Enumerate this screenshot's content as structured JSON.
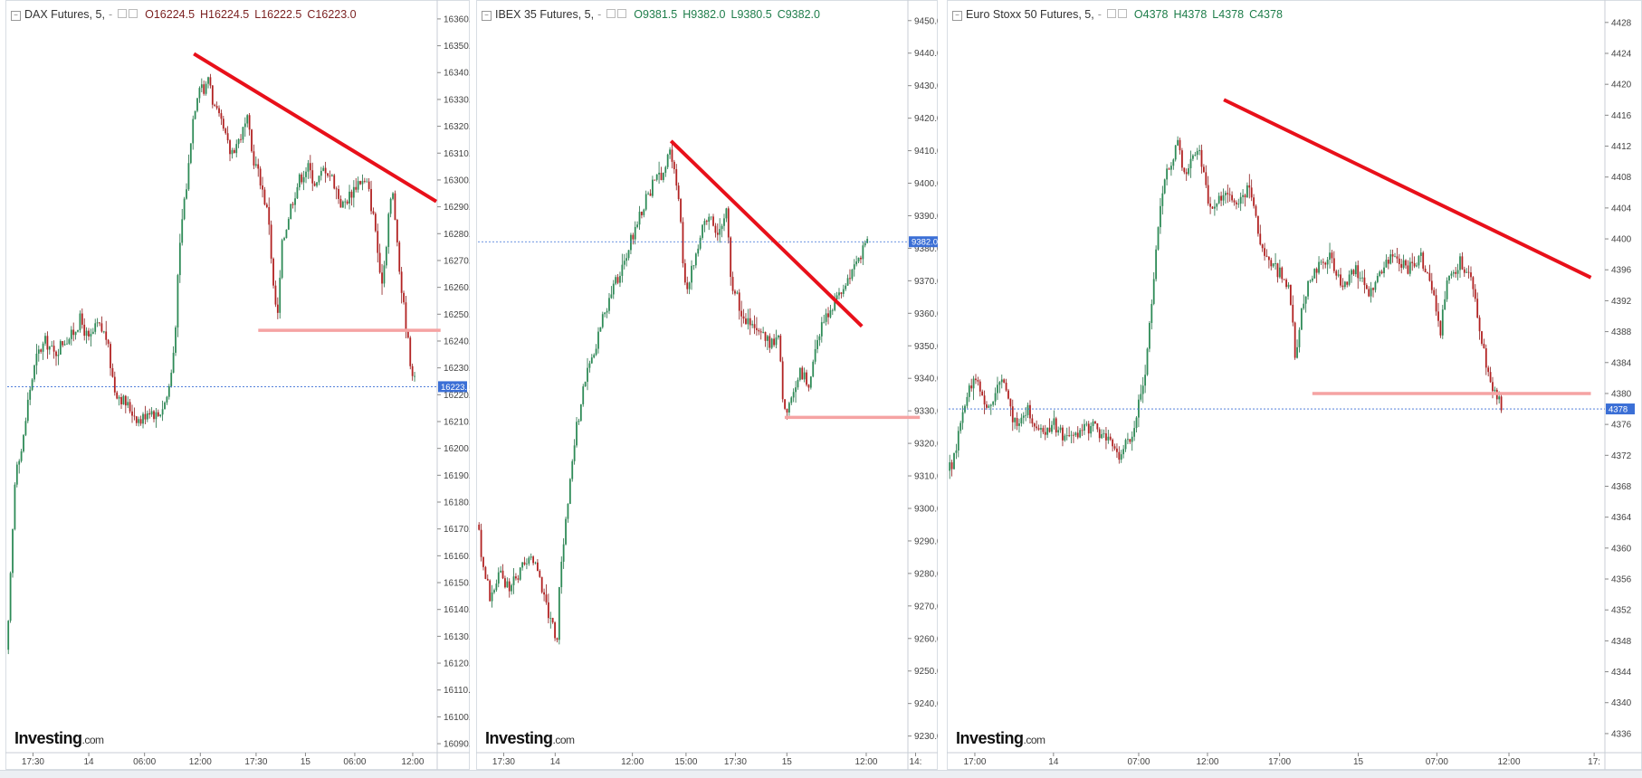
{
  "panels": [
    {
      "header": {
        "title": "DAX Futures, 5,",
        "dash": "-",
        "open": "O16224.5",
        "high": "H16224.5",
        "low": "L16222.5",
        "close": "C16223.0"
      },
      "logo": {
        "brand": "Investing",
        "suffix": ".com"
      },
      "chart_data": {
        "type": "candlestick",
        "title": "DAX Futures, 5,",
        "yticks": [
          16090.0,
          16100.0,
          16110.0,
          16120.0,
          16130.0,
          16140.0,
          16150.0,
          16160.0,
          16170.0,
          16180.0,
          16190.0,
          16200.0,
          16210.0,
          16220.0,
          16230.0,
          16240.0,
          16250.0,
          16260.0,
          16270.0,
          16280.0,
          16290.0,
          16300.0,
          16310.0,
          16320.0,
          16330.0,
          16340.0,
          16350.0,
          16360.0
        ],
        "ylim": [
          16088,
          16363
        ],
        "xticks": [
          {
            "label": "17:30",
            "pos": 0.06
          },
          {
            "label": "14",
            "pos": 0.19
          },
          {
            "label": "06:00",
            "pos": 0.32
          },
          {
            "label": "12:00",
            "pos": 0.45
          },
          {
            "label": "17:30",
            "pos": 0.58
          },
          {
            "label": "15",
            "pos": 0.695
          },
          {
            "label": "06:00",
            "pos": 0.81
          },
          {
            "label": "12:00",
            "pos": 0.945
          }
        ],
        "last_price": 16223.0,
        "last_price_label": "16223.0",
        "path": [
          [
            0.0,
            16125
          ],
          [
            0.01,
            16160
          ],
          [
            0.02,
            16195
          ],
          [
            0.035,
            16200
          ],
          [
            0.05,
            16220
          ],
          [
            0.07,
            16235
          ],
          [
            0.09,
            16240
          ],
          [
            0.11,
            16235
          ],
          [
            0.13,
            16240
          ],
          [
            0.15,
            16242
          ],
          [
            0.17,
            16248
          ],
          [
            0.19,
            16240
          ],
          [
            0.21,
            16246
          ],
          [
            0.23,
            16242
          ],
          [
            0.25,
            16222
          ],
          [
            0.27,
            16218
          ],
          [
            0.29,
            16214
          ],
          [
            0.31,
            16210
          ],
          [
            0.33,
            16215
          ],
          [
            0.35,
            16212
          ],
          [
            0.37,
            16218
          ],
          [
            0.38,
            16225
          ],
          [
            0.39,
            16240
          ],
          [
            0.4,
            16270
          ],
          [
            0.41,
            16290
          ],
          [
            0.42,
            16300
          ],
          [
            0.43,
            16320
          ],
          [
            0.44,
            16330
          ],
          [
            0.45,
            16338
          ],
          [
            0.46,
            16332
          ],
          [
            0.47,
            16340
          ],
          [
            0.48,
            16328
          ],
          [
            0.5,
            16320
          ],
          [
            0.52,
            16310
          ],
          [
            0.54,
            16315
          ],
          [
            0.56,
            16322
          ],
          [
            0.57,
            16310
          ],
          [
            0.59,
            16300
          ],
          [
            0.61,
            16285
          ],
          [
            0.62,
            16260
          ],
          [
            0.63,
            16248
          ],
          [
            0.64,
            16275
          ],
          [
            0.66,
            16290
          ],
          [
            0.68,
            16300
          ],
          [
            0.7,
            16305
          ],
          [
            0.72,
            16298
          ],
          [
            0.74,
            16305
          ],
          [
            0.76,
            16300
          ],
          [
            0.78,
            16290
          ],
          [
            0.8,
            16295
          ],
          [
            0.82,
            16300
          ],
          [
            0.84,
            16298
          ],
          [
            0.86,
            16280
          ],
          [
            0.87,
            16260
          ],
          [
            0.88,
            16270
          ],
          [
            0.89,
            16290
          ],
          [
            0.9,
            16295
          ],
          [
            0.91,
            16272
          ],
          [
            0.92,
            16258
          ],
          [
            0.93,
            16245
          ],
          [
            0.94,
            16232
          ],
          [
            0.952,
            16223
          ]
        ],
        "annotations": [
          {
            "type": "trendline",
            "from": [
              0.435,
              16347
            ],
            "to": [
              1.0,
              16292
            ],
            "color": "#e8101a"
          },
          {
            "type": "support",
            "from": [
              0.585,
              16244
            ],
            "to": [
              1.01,
              16244
            ],
            "color": "#f5a3a3"
          }
        ]
      }
    },
    {
      "header": {
        "title": "IBEX 35 Futures, 5,",
        "dash": "-",
        "open": "O9381.5",
        "high": "H9382.0",
        "low": "L9380.5",
        "close": "C9382.0"
      },
      "logo": {
        "brand": "Investing",
        "suffix": ".com"
      },
      "chart_data": {
        "type": "candlestick",
        "title": "IBEX 35 Futures, 5,",
        "yticks": [
          9230.0,
          9240.0,
          9250.0,
          9260.0,
          9270.0,
          9280.0,
          9290.0,
          9300.0,
          9310.0,
          9320.0,
          9330.0,
          9340.0,
          9350.0,
          9360.0,
          9370.0,
          9380.0,
          9390.0,
          9400.0,
          9410.0,
          9420.0,
          9430.0,
          9440.0,
          9450.0
        ],
        "ylim": [
          9226,
          9453
        ],
        "xticks": [
          {
            "label": "17:30",
            "pos": 0.06
          },
          {
            "label": "14",
            "pos": 0.18
          },
          {
            "label": "12:00",
            "pos": 0.36
          },
          {
            "label": "15:00",
            "pos": 0.485
          },
          {
            "label": "17:30",
            "pos": 0.6
          },
          {
            "label": "15",
            "pos": 0.72
          },
          {
            "label": "12:00",
            "pos": 0.905
          },
          {
            "label": "14:",
            "pos": 1.02
          }
        ],
        "last_price": 9382.0,
        "last_price_label": "9382.0",
        "path": [
          [
            0.0,
            9295
          ],
          [
            0.01,
            9282
          ],
          [
            0.02,
            9278
          ],
          [
            0.03,
            9272
          ],
          [
            0.05,
            9280
          ],
          [
            0.07,
            9276
          ],
          [
            0.09,
            9278
          ],
          [
            0.11,
            9283
          ],
          [
            0.13,
            9285
          ],
          [
            0.145,
            9278
          ],
          [
            0.16,
            9270
          ],
          [
            0.175,
            9263
          ],
          [
            0.185,
            9260
          ],
          [
            0.19,
            9275
          ],
          [
            0.2,
            9290
          ],
          [
            0.215,
            9310
          ],
          [
            0.23,
            9325
          ],
          [
            0.25,
            9340
          ],
          [
            0.27,
            9348
          ],
          [
            0.29,
            9358
          ],
          [
            0.31,
            9366
          ],
          [
            0.33,
            9372
          ],
          [
            0.35,
            9380
          ],
          [
            0.37,
            9388
          ],
          [
            0.39,
            9395
          ],
          [
            0.41,
            9400
          ],
          [
            0.43,
            9403
          ],
          [
            0.445,
            9410
          ],
          [
            0.46,
            9403
          ],
          [
            0.47,
            9392
          ],
          [
            0.48,
            9372
          ],
          [
            0.49,
            9368
          ],
          [
            0.5,
            9375
          ],
          [
            0.52,
            9385
          ],
          [
            0.54,
            9390
          ],
          [
            0.56,
            9385
          ],
          [
            0.58,
            9393
          ],
          [
            0.59,
            9370
          ],
          [
            0.61,
            9362
          ],
          [
            0.63,
            9357
          ],
          [
            0.65,
            9355
          ],
          [
            0.67,
            9352
          ],
          [
            0.68,
            9350
          ],
          [
            0.7,
            9353
          ],
          [
            0.71,
            9335
          ],
          [
            0.72,
            9328
          ],
          [
            0.73,
            9333
          ],
          [
            0.75,
            9342
          ],
          [
            0.77,
            9338
          ],
          [
            0.79,
            9350
          ],
          [
            0.81,
            9360
          ],
          [
            0.83,
            9362
          ],
          [
            0.85,
            9368
          ],
          [
            0.87,
            9372
          ],
          [
            0.88,
            9375
          ],
          [
            0.89,
            9377
          ],
          [
            0.9,
            9380
          ],
          [
            0.91,
            9382
          ]
        ],
        "annotations": [
          {
            "type": "trendline",
            "from": [
              0.45,
              9413
            ],
            "to": [
              0.895,
              9356
            ],
            "color": "#e8101a"
          },
          {
            "type": "support",
            "from": [
              0.715,
              9328
            ],
            "to": [
              1.03,
              9328
            ],
            "color": "#f5a3a3"
          }
        ]
      }
    },
    {
      "header": {
        "title": "Euro Stoxx 50 Futures, 5,",
        "dash": "-",
        "open": "O4378",
        "high": "H4378",
        "low": "L4378",
        "close": "C4378"
      },
      "logo": {
        "brand": "Investing",
        "suffix": ".com"
      },
      "chart_data": {
        "type": "candlestick",
        "title": "Euro Stoxx 50 Futures, 5,",
        "yticks": [
          4336,
          4340,
          4344,
          4348,
          4352,
          4356,
          4360,
          4364,
          4368,
          4372,
          4376,
          4380,
          4384,
          4388,
          4392,
          4396,
          4400,
          4404,
          4408,
          4412,
          4416,
          4420,
          4424,
          4428
        ],
        "ylim": [
          4334,
          4429.5
        ],
        "xticks": [
          {
            "label": "17:00",
            "pos": 0.04
          },
          {
            "label": "14",
            "pos": 0.16
          },
          {
            "label": "07:00",
            "pos": 0.29
          },
          {
            "label": "12:00",
            "pos": 0.395
          },
          {
            "label": "17:00",
            "pos": 0.505
          },
          {
            "label": "15",
            "pos": 0.625
          },
          {
            "label": "07:00",
            "pos": 0.745
          },
          {
            "label": "12:00",
            "pos": 0.855
          },
          {
            "label": "17:",
            "pos": 0.985
          }
        ],
        "last_price": 4378,
        "last_price_label": "4378",
        "path": [
          [
            0.0,
            4370
          ],
          [
            0.01,
            4372
          ],
          [
            0.02,
            4378
          ],
          [
            0.04,
            4382
          ],
          [
            0.06,
            4378
          ],
          [
            0.08,
            4382
          ],
          [
            0.1,
            4376
          ],
          [
            0.12,
            4378
          ],
          [
            0.14,
            4375
          ],
          [
            0.16,
            4376
          ],
          [
            0.18,
            4374
          ],
          [
            0.2,
            4375
          ],
          [
            0.22,
            4376
          ],
          [
            0.24,
            4374
          ],
          [
            0.26,
            4372
          ],
          [
            0.28,
            4375
          ],
          [
            0.3,
            4382
          ],
          [
            0.31,
            4392
          ],
          [
            0.32,
            4402
          ],
          [
            0.33,
            4408
          ],
          [
            0.34,
            4410
          ],
          [
            0.35,
            4413
          ],
          [
            0.36,
            4408
          ],
          [
            0.37,
            4410
          ],
          [
            0.38,
            4412
          ],
          [
            0.39,
            4408
          ],
          [
            0.4,
            4403
          ],
          [
            0.42,
            4406
          ],
          [
            0.44,
            4404
          ],
          [
            0.46,
            4407
          ],
          [
            0.48,
            4398
          ],
          [
            0.5,
            4396
          ],
          [
            0.52,
            4394
          ],
          [
            0.53,
            4384
          ],
          [
            0.54,
            4392
          ],
          [
            0.56,
            4396
          ],
          [
            0.58,
            4398
          ],
          [
            0.6,
            4394
          ],
          [
            0.62,
            4396
          ],
          [
            0.64,
            4393
          ],
          [
            0.66,
            4396
          ],
          [
            0.68,
            4398
          ],
          [
            0.7,
            4396
          ],
          [
            0.72,
            4398
          ],
          [
            0.74,
            4393
          ],
          [
            0.75,
            4388
          ],
          [
            0.76,
            4394
          ],
          [
            0.78,
            4397
          ],
          [
            0.8,
            4394
          ],
          [
            0.81,
            4388
          ],
          [
            0.82,
            4384
          ],
          [
            0.83,
            4380
          ],
          [
            0.84,
            4379
          ],
          [
            0.845,
            4378
          ]
        ],
        "annotations": [
          {
            "type": "trendline",
            "from": [
              0.42,
              4418
            ],
            "to": [
              0.98,
              4395
            ],
            "color": "#e8101a"
          },
          {
            "type": "support",
            "from": [
              0.555,
              4380
            ],
            "to": [
              0.98,
              4380
            ],
            "color": "#f5a3a3"
          }
        ]
      }
    }
  ]
}
